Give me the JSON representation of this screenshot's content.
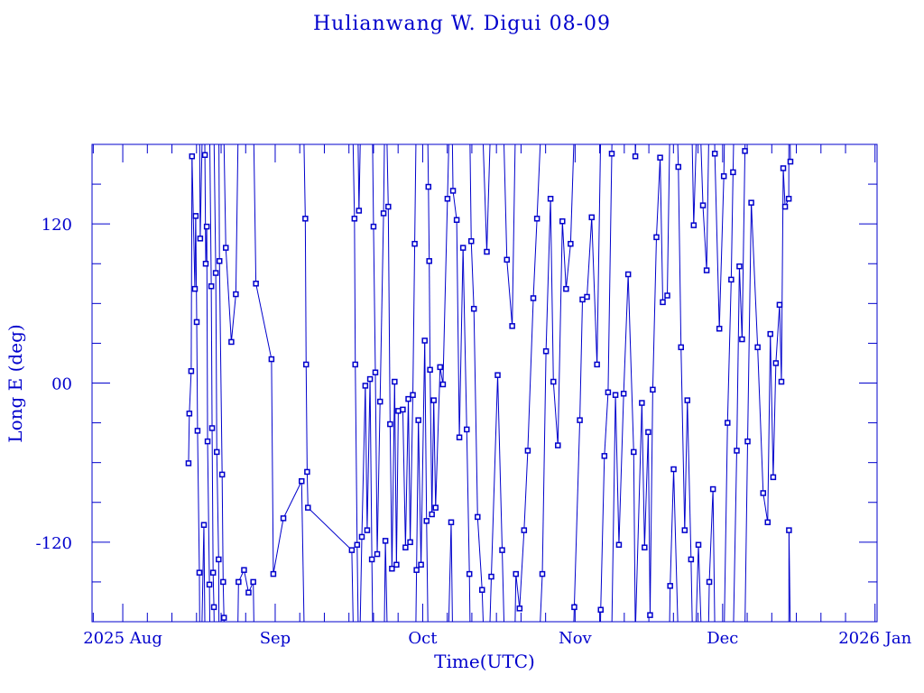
{
  "chart_data": {
    "type": "line",
    "title": "Hulianwang W. Digui 08-09",
    "xlabel": "Time(UTC)",
    "ylabel": "Long E (deg)",
    "xlim": [
      "2025-07-25T18:00",
      "2026-01-01T10:00"
    ],
    "ylim": [
      -180,
      180
    ],
    "yticks": [
      {
        "value": 120,
        "label": "120"
      },
      {
        "value": 0,
        "label": "00"
      },
      {
        "value": -120,
        "label": "-120"
      }
    ],
    "xticks": [
      {
        "date": "2025-08-01",
        "label": "2025 Aug"
      },
      {
        "date": "2025-09-01",
        "label": "Sep"
      },
      {
        "date": "2025-10-01",
        "label": "Oct"
      },
      {
        "date": "2025-11-01",
        "label": "Nov"
      },
      {
        "date": "2025-12-01",
        "label": "Dec"
      },
      {
        "date": "2026-01-01",
        "label": "2026 Jan"
      }
    ],
    "grid": false,
    "color": "#0000cc",
    "marker": "square",
    "points": [
      [
        "2025-08-14T09:00",
        -60.5
      ],
      [
        "2025-08-14T13:00",
        -23
      ],
      [
        "2025-08-14T22:00",
        9
      ],
      [
        "2025-08-15T02:00",
        171
      ],
      [
        "2025-08-15T16:00",
        71
      ],
      [
        "2025-08-15T20:00",
        126
      ],
      [
        "2025-08-16T01:00",
        46
      ],
      [
        "2025-08-16T05:00",
        -36
      ],
      [
        "2025-08-16T14:00",
        -143
      ],
      [
        "2025-08-16T18:00",
        109
      ],
      [
        "2025-08-17T12:00",
        -107
      ],
      [
        "2025-08-17T17:00",
        172
      ],
      [
        "2025-08-17T21:00",
        90
      ],
      [
        "2025-08-18T02:00",
        118
      ],
      [
        "2025-08-18T06:00",
        -44
      ],
      [
        "2025-08-18T15:00",
        -152
      ],
      [
        "2025-08-19T00:00",
        73
      ],
      [
        "2025-08-19T04:00",
        -34
      ],
      [
        "2025-08-19T09:00",
        -143
      ],
      [
        "2025-08-19T13:00",
        -169
      ],
      [
        "2025-08-19T22:00",
        83
      ],
      [
        "2025-08-20T03:00",
        -52
      ],
      [
        "2025-08-20T12:00",
        -133
      ],
      [
        "2025-08-20T16:00",
        92
      ],
      [
        "2025-08-21T05:00",
        -69
      ],
      [
        "2025-08-21T10:00",
        -150
      ],
      [
        "2025-08-21T14:00",
        -177
      ],
      [
        "2025-08-21T23:00",
        102
      ],
      [
        "2025-08-23T02:00",
        31
      ],
      [
        "2025-08-24T00:00",
        67
      ],
      [
        "2025-08-24T13:00",
        -150
      ],
      [
        "2025-08-25T16:00",
        -141
      ],
      [
        "2025-08-26T14:00",
        -158
      ],
      [
        "2025-08-27T13:00",
        -150
      ],
      [
        "2025-08-28T02:00",
        75
      ],
      [
        "2025-08-31T06:00",
        18
      ],
      [
        "2025-08-31T15:00",
        -144
      ],
      [
        "2025-09-02T16:00",
        -102
      ],
      [
        "2025-09-06T09:00",
        -74
      ],
      [
        "2025-09-07T03:00",
        124
      ],
      [
        "2025-09-07T07:00",
        14
      ],
      [
        "2025-09-07T12:00",
        -67
      ],
      [
        "2025-09-07T16:00",
        -94
      ],
      [
        "2025-09-16T14:00",
        -126
      ],
      [
        "2025-09-17T03:00",
        124
      ],
      [
        "2025-09-17T07:00",
        14
      ],
      [
        "2025-09-17T16:00",
        -122
      ],
      [
        "2025-09-18T01:00",
        130
      ],
      [
        "2025-09-18T15:00",
        -116
      ],
      [
        "2025-09-19T08:00",
        -2
      ],
      [
        "2025-09-19T17:00",
        -111
      ],
      [
        "2025-09-20T07:00",
        3
      ],
      [
        "2025-09-20T16:00",
        -133
      ],
      [
        "2025-09-21T00:00",
        118
      ],
      [
        "2025-09-21T09:00",
        8
      ],
      [
        "2025-09-21T18:00",
        -129
      ],
      [
        "2025-09-22T08:00",
        -14
      ],
      [
        "2025-09-23T01:00",
        128
      ],
      [
        "2025-09-23T10:00",
        -119
      ],
      [
        "2025-09-24T00:00",
        133
      ],
      [
        "2025-09-24T09:00",
        -31
      ],
      [
        "2025-09-24T18:00",
        -140
      ],
      [
        "2025-09-25T07:00",
        1
      ],
      [
        "2025-09-25T16:00",
        -137
      ],
      [
        "2025-09-26T01:00",
        -21
      ],
      [
        "2025-09-26T23:00",
        -20
      ],
      [
        "2025-09-27T12:00",
        -124
      ],
      [
        "2025-09-28T02:00",
        -12
      ],
      [
        "2025-09-28T11:00",
        -120
      ],
      [
        "2025-09-29T00:00",
        -9
      ],
      [
        "2025-09-29T09:00",
        105
      ],
      [
        "2025-09-29T18:00",
        -141
      ],
      [
        "2025-09-30T03:00",
        -28
      ],
      [
        "2025-09-30T16:00",
        -137
      ],
      [
        "2025-10-01T10:00",
        32
      ],
      [
        "2025-10-01T19:00",
        -104
      ],
      [
        "2025-10-02T04:00",
        148
      ],
      [
        "2025-10-02T08:00",
        92
      ],
      [
        "2025-10-02T12:00",
        10
      ],
      [
        "2025-10-02T21:00",
        -99
      ],
      [
        "2025-10-03T06:00",
        -13
      ],
      [
        "2025-10-03T15:00",
        -94
      ],
      [
        "2025-10-04T13:00",
        12
      ],
      [
        "2025-10-05T03:00",
        -1
      ],
      [
        "2025-10-06T01:00",
        139
      ],
      [
        "2025-10-06T19:00",
        -105
      ],
      [
        "2025-10-07T04:00",
        145
      ],
      [
        "2025-10-07T22:00",
        123
      ],
      [
        "2025-10-08T11:00",
        -41
      ],
      [
        "2025-10-09T05:00",
        102
      ],
      [
        "2025-10-09T23:00",
        -35
      ],
      [
        "2025-10-10T12:00",
        -144
      ],
      [
        "2025-10-10T21:00",
        107
      ],
      [
        "2025-10-11T10:00",
        56
      ],
      [
        "2025-10-12T04:00",
        -101
      ],
      [
        "2025-10-13T02:00",
        -156
      ],
      [
        "2025-10-14T01:00",
        99
      ],
      [
        "2025-10-14T23:00",
        -146
      ],
      [
        "2025-10-16T06:00",
        6
      ],
      [
        "2025-10-17T04:00",
        -126
      ],
      [
        "2025-10-18T03:00",
        93
      ],
      [
        "2025-10-19T05:00",
        43
      ],
      [
        "2025-10-19T23:00",
        -144
      ],
      [
        "2025-10-20T17:00",
        -170
      ],
      [
        "2025-10-21T15:00",
        -111
      ],
      [
        "2025-10-22T09:00",
        -51
      ],
      [
        "2025-10-23T12:00",
        64
      ],
      [
        "2025-10-24T06:00",
        124
      ],
      [
        "2025-10-25T08:00",
        -144
      ],
      [
        "2025-10-26T02:00",
        24
      ],
      [
        "2025-10-27T00:00",
        139
      ],
      [
        "2025-10-27T14:00",
        1
      ],
      [
        "2025-10-28T12:00",
        -47
      ],
      [
        "2025-10-29T10:00",
        122
      ],
      [
        "2025-10-30T04:00",
        71
      ],
      [
        "2025-10-31T02:00",
        105
      ],
      [
        "2025-10-31T20:00",
        -169
      ],
      [
        "2025-11-01T23:00",
        -28
      ],
      [
        "2025-11-02T12:00",
        63
      ],
      [
        "2025-11-03T10:00",
        65
      ],
      [
        "2025-11-04T09:00",
        125
      ],
      [
        "2025-11-05T11:00",
        14
      ],
      [
        "2025-11-06T05:00",
        -171
      ],
      [
        "2025-11-06T23:00",
        -55
      ],
      [
        "2025-11-07T17:00",
        -7
      ],
      [
        "2025-11-08T11:00",
        173
      ],
      [
        "2025-11-09T05:00",
        -9
      ],
      [
        "2025-11-09T22:00",
        -122
      ],
      [
        "2025-11-10T21:00",
        -8
      ],
      [
        "2025-11-11T19:00",
        82
      ],
      [
        "2025-11-12T22:00",
        -52
      ],
      [
        "2025-11-13T06:00",
        171
      ],
      [
        "2025-11-14T14:00",
        -15
      ],
      [
        "2025-11-15T03:00",
        -124
      ],
      [
        "2025-11-15T21:00",
        -37
      ],
      [
        "2025-11-16T06:00",
        -175
      ],
      [
        "2025-11-16T19:00",
        -5
      ],
      [
        "2025-11-17T13:00",
        110
      ],
      [
        "2025-11-18T07:00",
        170
      ],
      [
        "2025-11-18T20:00",
        61
      ],
      [
        "2025-11-19T18:00",
        66
      ],
      [
        "2025-11-20T08:00",
        -153
      ],
      [
        "2025-11-21T01:00",
        -65
      ],
      [
        "2025-11-22T00:00",
        163
      ],
      [
        "2025-11-22T13:00",
        27
      ],
      [
        "2025-11-23T07:00",
        -111
      ],
      [
        "2025-11-23T20:00",
        -13
      ],
      [
        "2025-11-24T14:00",
        -133
      ],
      [
        "2025-11-25T03:00",
        119
      ],
      [
        "2025-11-26T02:00",
        -122
      ],
      [
        "2025-11-27T00:00",
        134
      ],
      [
        "2025-11-27T18:00",
        85
      ],
      [
        "2025-11-28T07:00",
        -150
      ],
      [
        "2025-11-29T01:00",
        -80
      ],
      [
        "2025-11-29T10:00",
        173
      ],
      [
        "2025-11-30T08:00",
        41
      ],
      [
        "2025-12-01T06:00",
        156
      ],
      [
        "2025-12-02T00:00",
        -30
      ],
      [
        "2025-12-02T18:00",
        78
      ],
      [
        "2025-12-03T03:00",
        159
      ],
      [
        "2025-12-03T21:00",
        -51
      ],
      [
        "2025-12-04T10:00",
        88
      ],
      [
        "2025-12-04T23:00",
        33
      ],
      [
        "2025-12-05T13:00",
        175
      ],
      [
        "2025-12-06T02:00",
        -44
      ],
      [
        "2025-12-06T20:00",
        136
      ],
      [
        "2025-12-08T03:00",
        27
      ],
      [
        "2025-12-09T06:00",
        -83
      ],
      [
        "2025-12-10T04:00",
        -105
      ],
      [
        "2025-12-10T17:00",
        37
      ],
      [
        "2025-12-11T07:00",
        -71
      ],
      [
        "2025-12-11T20:00",
        15
      ],
      [
        "2025-12-12T14:00",
        59
      ],
      [
        "2025-12-12T23:00",
        1
      ],
      [
        "2025-12-13T08:00",
        162
      ],
      [
        "2025-12-13T17:00",
        133
      ],
      [
        "2025-12-14T11:00",
        139
      ],
      [
        "2025-12-14T12:00",
        -111
      ],
      [
        "2025-12-14T19:00",
        167
      ]
    ]
  }
}
